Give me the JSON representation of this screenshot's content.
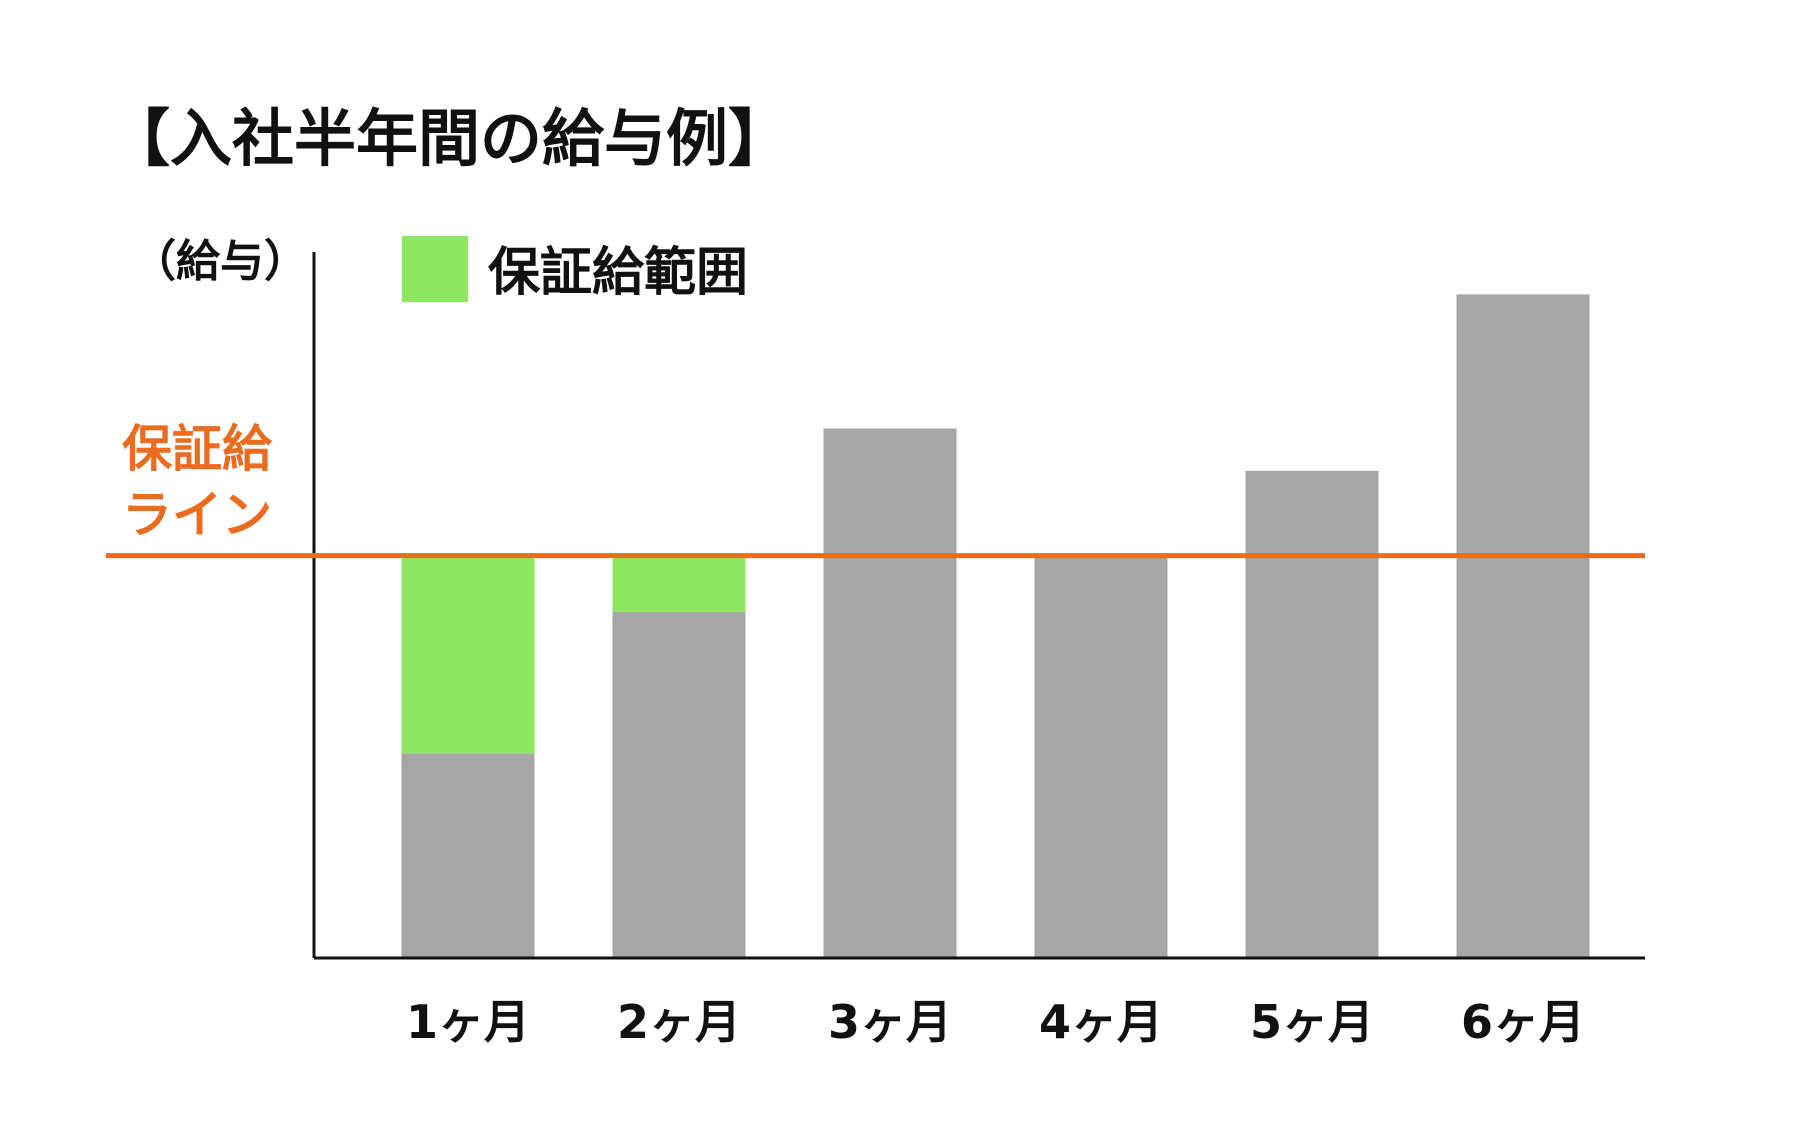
{
  "chart_data": {
    "type": "bar",
    "title": "【入社半年間の給与例】",
    "ylabel": "（給与）",
    "xlabel": "",
    "categories": [
      "1ヶ月",
      "2ヶ月",
      "3ヶ月",
      "4ヶ月",
      "5ヶ月",
      "6ヶ月"
    ],
    "ylim": [
      0,
      100
    ],
    "series": [
      {
        "name": "",
        "color": "#a6a6a6",
        "values": [
          29,
          49,
          75,
          57,
          69,
          94
        ]
      },
      {
        "name": "保証給範囲",
        "color": "#8ee85f",
        "values": [
          28,
          8,
          0,
          0,
          0,
          0
        ]
      }
    ],
    "stacked": true,
    "reference_line": {
      "label_lines": [
        "保証給",
        "ライン"
      ],
      "value": 57,
      "color": "#ec6c1f"
    },
    "legend": {
      "position": "top",
      "entries": [
        {
          "label": "保証給範囲",
          "color": "#8ee85f"
        }
      ]
    },
    "grid": false,
    "axis_color": "#111111"
  }
}
